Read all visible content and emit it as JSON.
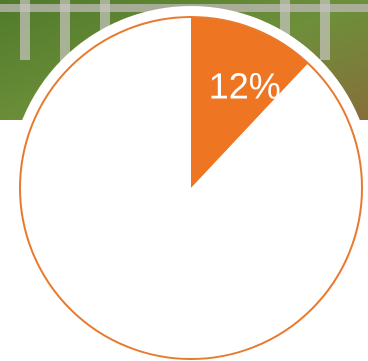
{
  "chart_data": {
    "type": "pie",
    "values": [
      12,
      88
    ],
    "value_labels": [
      "12%",
      null
    ],
    "colors": [
      "#ee7623",
      "#ffffff"
    ],
    "edge_color": "#e8792e"
  }
}
